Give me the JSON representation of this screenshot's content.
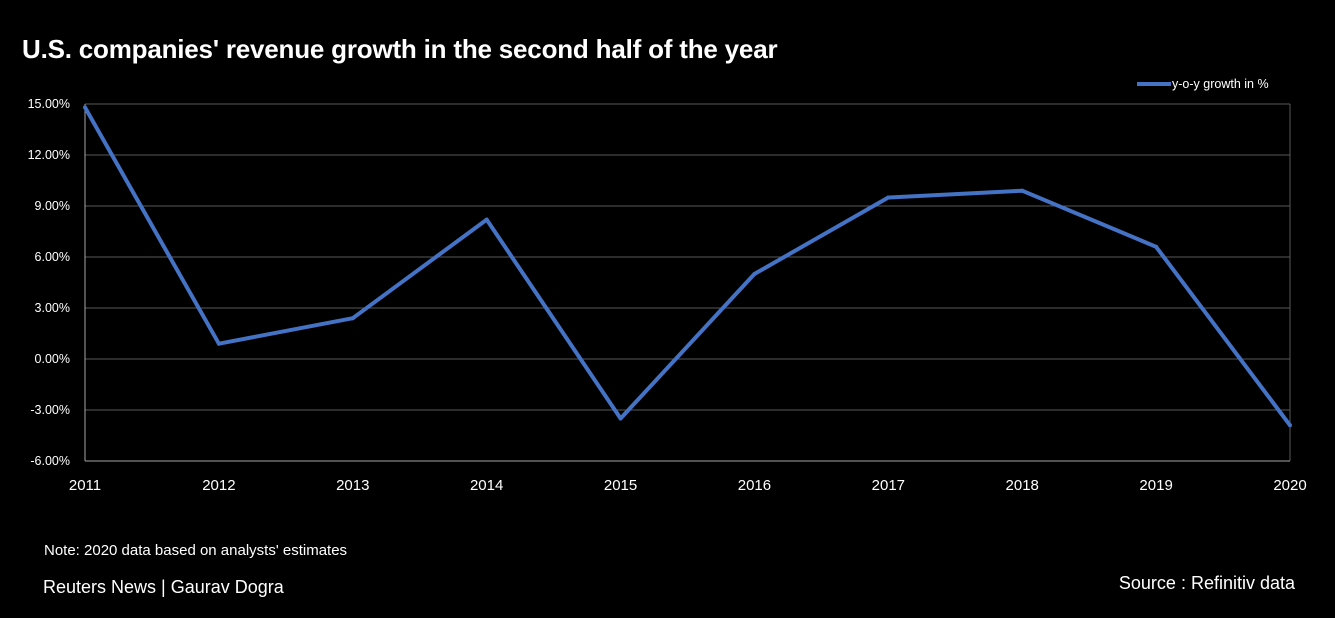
{
  "header": {
    "title": "U.S. companies' revenue growth in the second half of the year"
  },
  "footer": {
    "note": "Note: 2020 data based on analysts' estimates",
    "credit": "Reuters News | Gaurav Dogra",
    "source": "Source : Refinitiv data"
  },
  "colors": {
    "background": "#000000",
    "line": "#4472C4",
    "grid": "#595959",
    "text": "#ffffff"
  },
  "chart_data": {
    "type": "line",
    "title": "U.S. companies' revenue growth in the second half of the year",
    "xlabel": "",
    "ylabel": "",
    "categories": [
      "2011",
      "2012",
      "2013",
      "2014",
      "2015",
      "2016",
      "2017",
      "2018",
      "2019",
      "2020"
    ],
    "series": [
      {
        "name": "y-o-y  growth in %",
        "values": [
          14.8,
          0.9,
          2.4,
          8.2,
          -3.5,
          5.0,
          9.5,
          9.9,
          6.6,
          -3.9
        ]
      }
    ],
    "ylim": [
      -6,
      15
    ],
    "yticks": [
      15,
      12,
      9,
      6,
      3,
      0,
      -3,
      -6
    ],
    "ytick_labels": [
      "15.00%",
      "12.00%",
      "9.00%",
      "6.00%",
      "3.00%",
      "0.00%",
      "-3.00%",
      "-6.00%"
    ],
    "grid": true,
    "legend_position": "top-right"
  }
}
